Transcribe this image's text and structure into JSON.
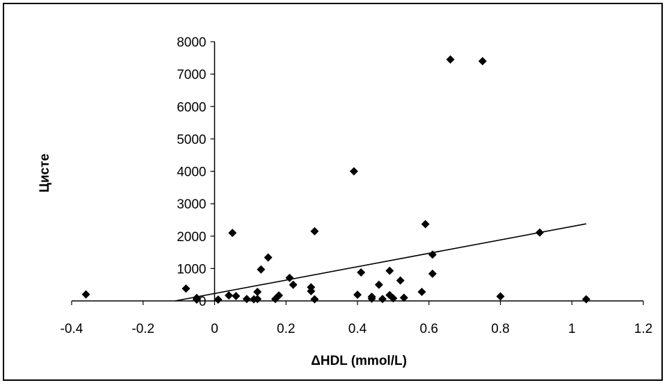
{
  "chart_data": {
    "type": "scatter",
    "xlabel": "ΔHDL (mmol/L)",
    "ylabel": "Цисте",
    "xlim": [
      -0.4,
      1.2
    ],
    "ylim": [
      0,
      8000
    ],
    "xticks": [
      "-0.4",
      "-0.2",
      "0",
      "0.2",
      "0.4",
      "0.6",
      "0.8",
      "1",
      "1.2"
    ],
    "yticks": [
      "0",
      "1000",
      "2000",
      "3000",
      "4000",
      "5000",
      "6000",
      "7000",
      "8000"
    ],
    "grid": false,
    "legend": "none",
    "marker": "diamond",
    "marker_color": "#000000",
    "points": [
      [
        -0.36,
        200
      ],
      [
        -0.08,
        380
      ],
      [
        -0.05,
        90
      ],
      [
        -0.05,
        40
      ],
      [
        0.01,
        40
      ],
      [
        0.04,
        170
      ],
      [
        0.05,
        2100
      ],
      [
        0.06,
        150
      ],
      [
        0.09,
        60
      ],
      [
        0.11,
        50
      ],
      [
        0.12,
        280
      ],
      [
        0.12,
        60
      ],
      [
        0.13,
        970
      ],
      [
        0.15,
        1340
      ],
      [
        0.17,
        60
      ],
      [
        0.18,
        170
      ],
      [
        0.21,
        710
      ],
      [
        0.22,
        500
      ],
      [
        0.27,
        420
      ],
      [
        0.27,
        300
      ],
      [
        0.28,
        2150
      ],
      [
        0.28,
        50
      ],
      [
        0.39,
        4000
      ],
      [
        0.4,
        190
      ],
      [
        0.41,
        880
      ],
      [
        0.44,
        130
      ],
      [
        0.44,
        70
      ],
      [
        0.46,
        500
      ],
      [
        0.47,
        60
      ],
      [
        0.49,
        930
      ],
      [
        0.49,
        180
      ],
      [
        0.5,
        80
      ],
      [
        0.52,
        630
      ],
      [
        0.53,
        100
      ],
      [
        0.58,
        280
      ],
      [
        0.59,
        2370
      ],
      [
        0.61,
        1430
      ],
      [
        0.61,
        840
      ],
      [
        0.66,
        7450
      ],
      [
        0.75,
        7400
      ],
      [
        0.8,
        140
      ],
      [
        0.91,
        2110
      ],
      [
        1.04,
        50
      ]
    ],
    "trendline": {
      "x": [
        -0.11,
        1.04
      ],
      "y": [
        0,
        2380
      ],
      "color": "#000000"
    }
  }
}
